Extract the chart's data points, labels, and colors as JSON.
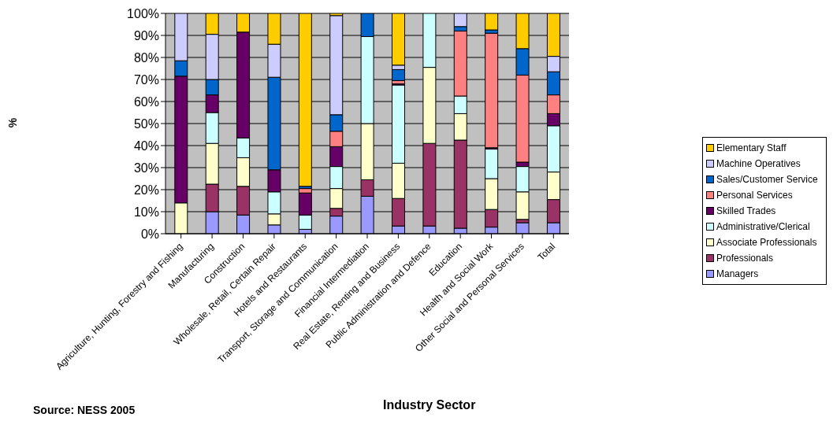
{
  "chart_data": {
    "type": "bar",
    "stacked": true,
    "xlabel": "Industry Sector",
    "ylabel": "%",
    "annotations": [
      "Source: NESS 2005"
    ],
    "categories": [
      "Agriculture, Hunting, Forestry and Fishing",
      "Manufacturing",
      "Construction",
      "Wholesale, Retail, Certain Repair",
      "Hotels and Restaurants",
      "Transport, Storage and Communication",
      "Financial Intermediation",
      "Real Estate, Renting and Business",
      "Public Administration and Defence",
      "Education",
      "Health and Social Work",
      "Other Social and Personal Services",
      "Total"
    ],
    "series": [
      {
        "name": "Managers",
        "color": "#9999ff",
        "values": [
          0,
          10,
          8.5,
          4,
          2,
          8,
          17,
          3.5,
          3.5,
          2.5,
          3,
          5,
          5
        ]
      },
      {
        "name": "Professionals",
        "color": "#993366",
        "values": [
          0,
          12.5,
          13,
          0,
          0,
          3.5,
          7.5,
          12.5,
          37.5,
          40,
          8,
          1.5,
          10.5
        ]
      },
      {
        "name": "Associate Professionals",
        "color": "#ffffcc",
        "values": [
          14,
          18.5,
          13,
          5,
          0,
          9,
          25.5,
          16,
          34.5,
          12,
          14,
          12.5,
          12.5
        ]
      },
      {
        "name": "Administrative/Clerical",
        "color": "#ccffff",
        "values": [
          0,
          14,
          9,
          10,
          6.5,
          10,
          39.5,
          35.5,
          24.5,
          8,
          13.5,
          11.5,
          21
        ]
      },
      {
        "name": "Skilled Trades",
        "color": "#660066",
        "values": [
          57.5,
          8,
          48,
          10,
          10,
          9,
          0,
          0.5,
          0,
          0,
          0.5,
          2,
          5.5
        ]
      },
      {
        "name": "Personal Services",
        "color": "#ff8080",
        "values": [
          0,
          0,
          0,
          0,
          2,
          7,
          0,
          1.5,
          0,
          29.5,
          52,
          39.5,
          8.5
        ]
      },
      {
        "name": "Sales/Customer Service",
        "color": "#0066cc",
        "values": [
          7,
          7,
          0,
          42,
          1,
          7.5,
          10.5,
          5,
          0,
          2,
          1.5,
          12,
          10.5
        ]
      },
      {
        "name": "Machine Operatives",
        "color": "#ccccff",
        "values": [
          21.5,
          20.5,
          0,
          15,
          0,
          45,
          0,
          2,
          0,
          6,
          0,
          0,
          7
        ]
      },
      {
        "name": "Elementary Staff",
        "color": "#ffcc00",
        "values": [
          0,
          9.5,
          8.5,
          14,
          78.5,
          1,
          0,
          23.5,
          0,
          0,
          7.5,
          16,
          19.5
        ]
      }
    ],
    "ylim": [
      0,
      100
    ],
    "yticks": [
      {
        "value": 0,
        "label": "0%"
      },
      {
        "value": 10,
        "label": "10%"
      },
      {
        "value": 20,
        "label": "20%"
      },
      {
        "value": 30,
        "label": "30%"
      },
      {
        "value": 40,
        "label": "40%"
      },
      {
        "value": 50,
        "label": "50%"
      },
      {
        "value": 60,
        "label": "60%"
      },
      {
        "value": 70,
        "label": "70%"
      },
      {
        "value": 80,
        "label": "80%"
      },
      {
        "value": 90,
        "label": "90%"
      },
      {
        "value": 100,
        "label": "100%"
      }
    ],
    "grid": "y",
    "legend": "right"
  }
}
